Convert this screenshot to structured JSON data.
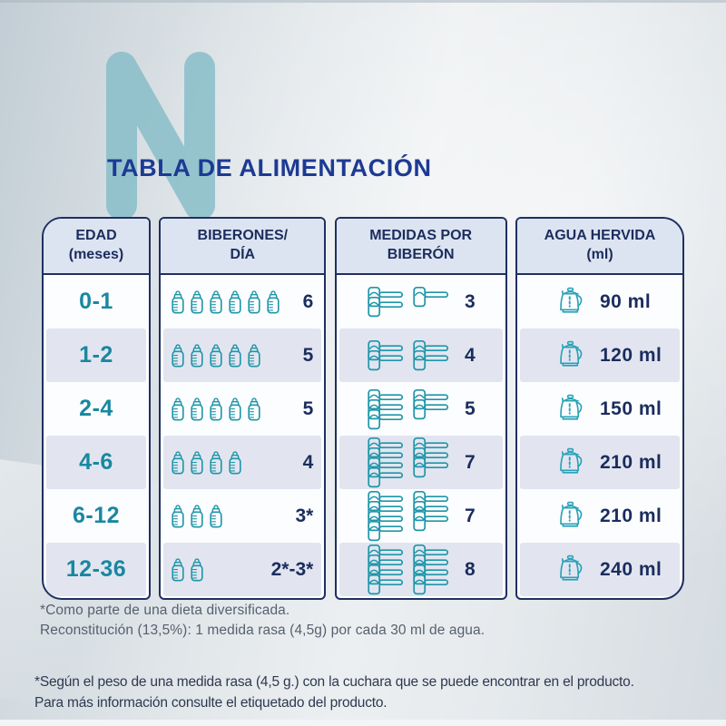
{
  "page": {
    "watermark_letter": "N",
    "title": "TABLA DE ALIMENTACIÓN"
  },
  "table": {
    "columns": [
      {
        "id": "edad",
        "header_line1": "EDAD",
        "header_line2": "(meses)"
      },
      {
        "id": "biberones",
        "header_line1": "BIBERONES/",
        "header_line2": "DÍA"
      },
      {
        "id": "medidas",
        "header_line1": "MEDIDAS POR",
        "header_line2": "BIBERÓN"
      },
      {
        "id": "agua",
        "header_line1": "AGUA HERVIDA",
        "header_line2": "(ml)"
      }
    ],
    "rows": [
      {
        "age": "0-1",
        "bottles": 6,
        "bottles_label": "6",
        "scoops": 3,
        "scoop_groups": [
          2,
          1
        ],
        "scoops_label": "3",
        "water": "90 ml"
      },
      {
        "age": "1-2",
        "bottles": 5,
        "bottles_label": "5",
        "scoops": 4,
        "scoop_groups": [
          2,
          2
        ],
        "scoops_label": "4",
        "water": "120 ml"
      },
      {
        "age": "2-4",
        "bottles": 5,
        "bottles_label": "5",
        "scoops": 5,
        "scoop_groups": [
          3,
          2
        ],
        "scoops_label": "5",
        "water": "150 ml"
      },
      {
        "age": "4-6",
        "bottles": 4,
        "bottles_label": "4",
        "scoops": 7,
        "scoop_groups": [
          4,
          3
        ],
        "scoops_label": "7",
        "water": "210 ml"
      },
      {
        "age": "6-12",
        "bottles": 3,
        "bottles_label": "3*",
        "scoops": 7,
        "scoop_groups": [
          4,
          3
        ],
        "scoops_label": "7",
        "water": "210 ml"
      },
      {
        "age": "12-36",
        "bottles": 2,
        "bottles_label": "2*-3*",
        "scoops": 8,
        "scoop_groups": [
          4,
          4
        ],
        "scoops_label": "8",
        "water": "240 ml"
      }
    ]
  },
  "footnotes": {
    "note1_line1": "*Como parte de una dieta diversificada.",
    "note1_line2": "Reconstitución (13,5%): 1 medida rasa (4,5g) por cada 30 ml de agua.",
    "note2_line1": "*Según el peso de una medida rasa (4,5 g.) con la cuchara que se puede encontrar en el producto.",
    "note2_line2": "Para más información consulte el etiquetado del producto."
  },
  "icons": {
    "bottle": "baby-bottle-icon",
    "scoop": "measuring-scoop-icon",
    "kettle": "kettle-icon"
  },
  "colors": {
    "title": "#1d3a93",
    "table_border": "#1f3060",
    "header_bg": "#dde4f1",
    "stripe_bg": "#e2e5f0",
    "age_text": "#1987a1",
    "icon_teal": "#1e96a8",
    "kettle_teal": "#2aa2b8",
    "number_text": "#1b2d5e",
    "watermark": "#86bdc8",
    "footnote_text": "#56616f",
    "bottom_text": "#2d3950"
  }
}
